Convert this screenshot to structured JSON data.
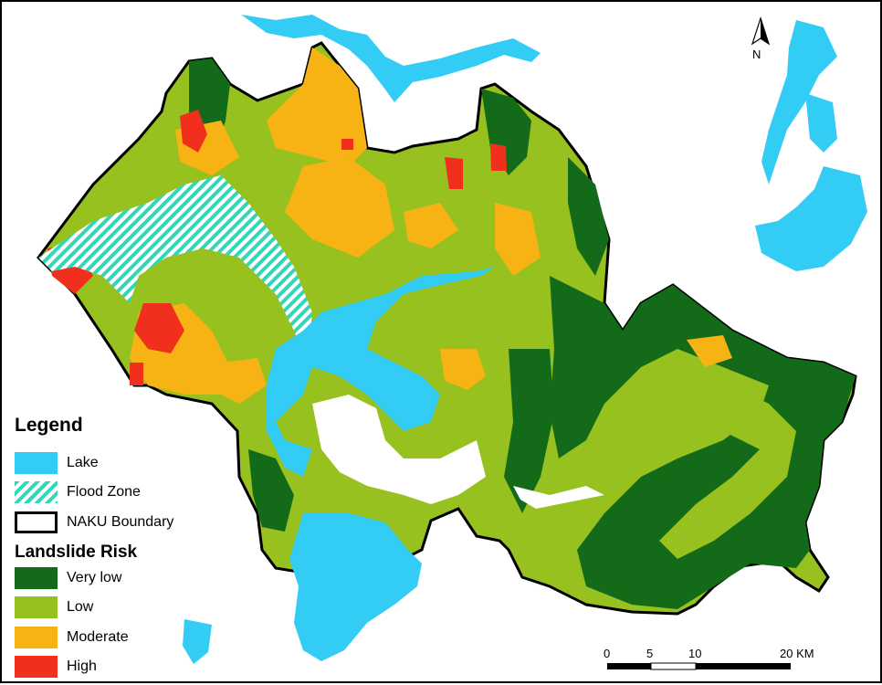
{
  "legend": {
    "title": "Legend",
    "items": [
      {
        "label": "Lake",
        "icon": "lake-swatch",
        "color": "#33ccf5"
      },
      {
        "label": "Flood Zone",
        "icon": "flood-hatch-swatch",
        "color": "#33d6b8"
      },
      {
        "label": "NAKU Boundary",
        "icon": "boundary-swatch",
        "color": "#000000"
      }
    ],
    "risk_title": "Landslide Risk",
    "risk_items": [
      {
        "label": "Very low",
        "color": "#136b1a"
      },
      {
        "label": "Low",
        "color": "#97c11f"
      },
      {
        "label": "Moderate",
        "color": "#f7b313"
      },
      {
        "label": "High",
        "color": "#f0301c"
      }
    ]
  },
  "north_arrow": {
    "label": "N",
    "icon": "north-arrow-icon"
  },
  "scale_bar": {
    "ticks": [
      "0",
      "5",
      "10",
      "20 KM"
    ]
  }
}
